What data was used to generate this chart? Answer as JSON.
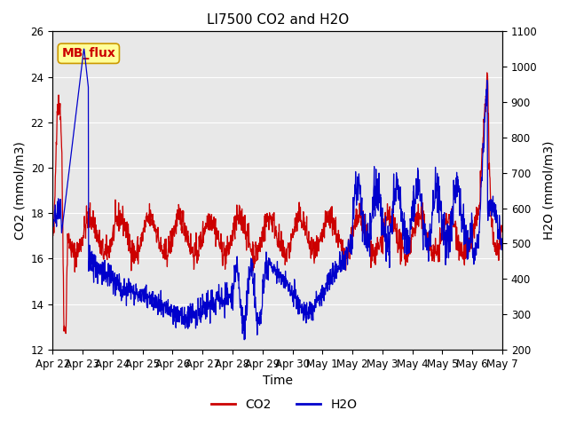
{
  "title": "LI7500 CO2 and H2O",
  "xlabel": "Time",
  "ylabel_left": "CO2 (mmol/m3)",
  "ylabel_right": "H2O (mmol/m3)",
  "annotation_text": "MB_flux",
  "annotation_color": "#cc0000",
  "annotation_bg": "#ffff99",
  "annotation_edge": "#cc9900",
  "ylim_left": [
    12,
    26
  ],
  "ylim_right": [
    200,
    1100
  ],
  "yticks_left": [
    12,
    14,
    16,
    18,
    20,
    22,
    24,
    26
  ],
  "yticks_right": [
    200,
    300,
    400,
    500,
    600,
    700,
    800,
    900,
    1000,
    1100
  ],
  "x_tick_labels": [
    "Apr 22",
    "Apr 23",
    "Apr 24",
    "Apr 25",
    "Apr 26",
    "Apr 27",
    "Apr 28",
    "Apr 29",
    "Apr 30",
    "May 1",
    "May 2",
    "May 3",
    "May 4",
    "May 5",
    "May 6",
    "May 7"
  ],
  "num_points": 1500,
  "bg_color": "#e8e8e8",
  "line_color_co2": "#cc0000",
  "line_color_h2o": "#0000cc",
  "grid_color": "#ffffff",
  "title_fontsize": 11,
  "label_fontsize": 10,
  "tick_fontsize": 8.5,
  "legend_fontsize": 10
}
